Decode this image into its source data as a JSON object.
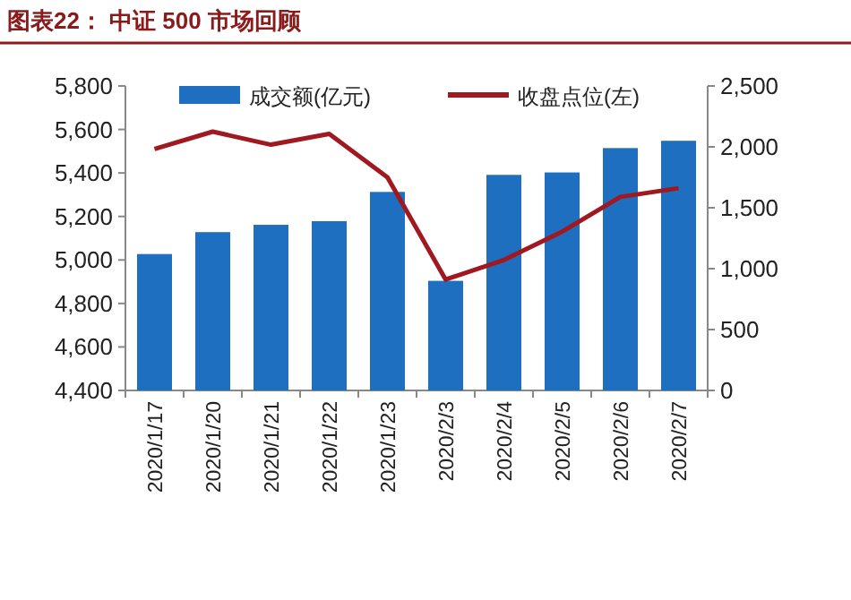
{
  "chart_data": {
    "type": "bar",
    "title": "图表22： 中证 500 市场回顾",
    "categories": [
      "2020/1/17",
      "2020/1/20",
      "2020/1/21",
      "2020/1/22",
      "2020/1/23",
      "2020/2/3",
      "2020/2/4",
      "2020/2/5",
      "2020/2/6",
      "2020/2/7"
    ],
    "series": [
      {
        "name": "成交额(亿元)",
        "axis": "y2",
        "color": "#1f6fc0",
        "values": [
          1120,
          1300,
          1360,
          1390,
          1630,
          900,
          1770,
          1790,
          1990,
          2050
        ]
      },
      {
        "name": "收盘点位(左)",
        "type": "line",
        "color": "#a01820",
        "values": [
          5510,
          5590,
          5530,
          5580,
          5380,
          4910,
          5000,
          5130,
          5290,
          5330
        ]
      }
    ],
    "ylim": [
      4400,
      5800
    ],
    "yticks": [
      {
        "value": 4400,
        "label": "4,400"
      },
      {
        "value": 4600,
        "label": "4,600"
      },
      {
        "value": 4800,
        "label": "4,800"
      },
      {
        "value": 5000,
        "label": "5,000"
      },
      {
        "value": 5200,
        "label": "5,200"
      },
      {
        "value": 5400,
        "label": "5,400"
      },
      {
        "value": 5600,
        "label": "5,600"
      },
      {
        "value": 5800,
        "label": "5,800"
      }
    ],
    "y2lim": [
      0,
      2500
    ],
    "y2ticks": [
      0,
      500,
      {
        "value": 1000,
        "label": "1,000"
      },
      {
        "value": 1500,
        "label": "1,500"
      },
      {
        "value": 2000,
        "label": "2,000"
      },
      {
        "value": 2500,
        "label": "2,500"
      }
    ],
    "legend": "top",
    "grid": false
  }
}
